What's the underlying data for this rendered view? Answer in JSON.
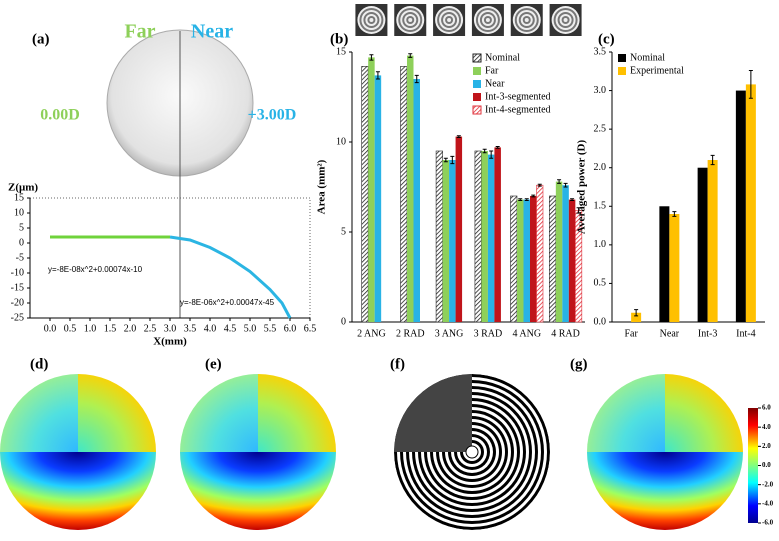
{
  "chart_data": [
    {
      "type": "line",
      "panel_label": "(a)",
      "top_left_text": "Far",
      "top_right_text": "Near",
      "left_text": "0.00D",
      "right_text": "+3.00D",
      "x_label": "X(mm)",
      "y_label": "Z(μm)",
      "xlim": [
        -0.5,
        6.5
      ],
      "ylim": [
        -25,
        15
      ],
      "xticks": [
        {
          "value": 0,
          "label": "0.0"
        },
        0.5,
        {
          "value": 1,
          "label": "1.0"
        },
        1.5,
        {
          "value": 2,
          "label": "2.0"
        },
        2.5,
        {
          "value": 3,
          "label": "3.0"
        },
        3.5,
        {
          "value": 4,
          "label": "4.0"
        },
        4.5,
        {
          "value": 5,
          "label": "5.0"
        },
        5.5,
        {
          "value": 6,
          "label": "6.0"
        },
        6.5
      ],
      "yticks": [
        -25,
        -20,
        -15,
        -10,
        -5,
        0,
        5,
        10,
        15
      ],
      "series": [
        {
          "color": "#6fd33b",
          "x": [
            0,
            0.5,
            1,
            1.5,
            2,
            2.5,
            3
          ],
          "values": [
            2,
            2,
            2,
            2,
            2,
            2,
            2
          ]
        },
        {
          "color": "#2bb5e3",
          "x": [
            3,
            3.5,
            4,
            4.5,
            5,
            5.5,
            5.8,
            6
          ],
          "values": [
            2,
            1,
            -1.5,
            -5,
            -9.5,
            -15.5,
            -20,
            -25
          ]
        }
      ],
      "annotations": [
        "y=-8E-08x^2+0.00074x-10",
        "y=-8E-06x^2+0.00047x-45"
      ]
    },
    {
      "type": "bar",
      "panel_label": "(b)",
      "y_label": "Area (mm²)",
      "categories": [
        "2 ANG",
        "2 RAD",
        "3 ANG",
        "3 RAD",
        "4 ANG",
        "4 RAD"
      ],
      "ylim": [
        0,
        15
      ],
      "yticks": [
        0,
        5,
        10,
        15
      ],
      "legend": "top-right",
      "series": [
        {
          "name": "Nominal",
          "color": "#222222",
          "hatch": true,
          "values": [
            14.2,
            14.2,
            9.5,
            9.5,
            7.0,
            7.0
          ]
        },
        {
          "name": "Far",
          "color": "#8ed05a",
          "values": [
            14.7,
            14.8,
            9.0,
            9.5,
            6.8,
            7.8
          ],
          "errors": [
            0.15,
            0.1,
            0.1,
            0.1,
            0.05,
            0.1
          ]
        },
        {
          "name": "Near",
          "color": "#28b3e6",
          "values": [
            13.7,
            13.5,
            9.0,
            9.3,
            6.8,
            7.6
          ],
          "errors": [
            0.2,
            0.2,
            0.2,
            0.2,
            0.05,
            0.1
          ]
        },
        {
          "name": "Int-3-segmented",
          "color": "#c0141a",
          "values": [
            null,
            null,
            10.3,
            9.7,
            7.0,
            6.8
          ],
          "errors": [
            null,
            null,
            0.05,
            0.05,
            0.05,
            0.05
          ]
        },
        {
          "name": "Int-4-segmented",
          "color": "#e0303a",
          "hatch": true,
          "values": [
            null,
            null,
            null,
            null,
            7.6,
            6.2
          ],
          "errors": [
            null,
            null,
            null,
            null,
            0.05,
            0.15
          ]
        }
      ]
    },
    {
      "type": "bar",
      "panel_label": "(c)",
      "y_label": "Averaged power (D)",
      "categories": [
        "Far",
        "Near",
        "Int-3",
        "Int-4"
      ],
      "ylim": [
        0,
        3.5
      ],
      "yticks": [
        {
          "value": 0,
          "label": "0.0"
        },
        0.5,
        {
          "value": 1,
          "label": "1.0"
        },
        1.5,
        {
          "value": 2,
          "label": "2.0"
        },
        2.5,
        {
          "value": 3,
          "label": "3.0"
        },
        3.5
      ],
      "legend": "top-left",
      "series": [
        {
          "name": "Nominal",
          "color": "#000000",
          "values": [
            0,
            1.5,
            2.0,
            3.0
          ]
        },
        {
          "name": "Experimental",
          "color": "#ffc000",
          "values": [
            0.12,
            1.4,
            2.1,
            3.08
          ],
          "errors": [
            0.04,
            0.03,
            0.06,
            0.18
          ]
        }
      ]
    }
  ],
  "image_panels": [
    {
      "label": "(d)"
    },
    {
      "label": "(e)"
    },
    {
      "label": "(f)"
    },
    {
      "label": "(g)"
    }
  ],
  "colorbar": {
    "lim": [
      -6,
      6
    ],
    "ticks": [
      {
        "value": 6,
        "label": "6.0"
      },
      {
        "value": 4,
        "label": "4.0"
      },
      {
        "value": 2,
        "label": "2.0"
      },
      {
        "value": 0,
        "label": "0.0"
      },
      {
        "value": -2,
        "label": "-2.0"
      },
      {
        "value": -4,
        "label": "-4.0"
      },
      {
        "value": -6,
        "label": "-6.0"
      }
    ]
  }
}
